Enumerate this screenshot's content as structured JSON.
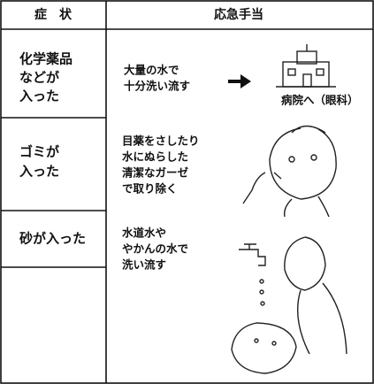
{
  "header": {
    "columns": [
      "症　状",
      "応急手当"
    ]
  },
  "rows": [
    {
      "symptom": [
        "化学薬品",
        "などが",
        "入った"
      ],
      "action": [
        "大量の水で",
        "十分洗い流す"
      ],
      "note": "病院へ（眼科）"
    },
    {
      "symptom": [
        "ゴミが",
        "入った"
      ],
      "action": [
        "目薬をさしたり",
        "水にぬらした",
        "清潔なガーゼ",
        "で取り除く"
      ]
    },
    {
      "symptom": [
        "砂が入った"
      ],
      "action": [
        "水道水や",
        "やかんの水で",
        "洗い流す"
      ]
    }
  ]
}
